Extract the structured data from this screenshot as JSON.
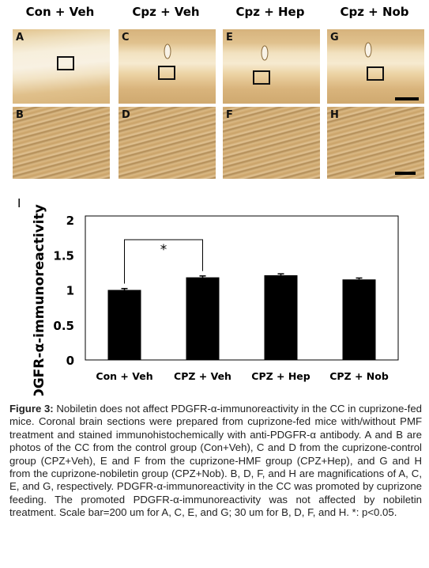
{
  "figure": {
    "column_titles": [
      "Con + Veh",
      "Cpz + Veh",
      "Cpz + Hep",
      "Cpz + Nob"
    ],
    "top_panel_labels": [
      "A",
      "C",
      "E",
      "G"
    ],
    "bottom_panel_labels": [
      "B",
      "D",
      "F",
      "H"
    ],
    "chart_panel_label": "I"
  },
  "chart_data": {
    "type": "bar",
    "ylabel": "PDGFR-α-immunoreactivity",
    "xlabel": "",
    "title": "",
    "categories": [
      "Con + Veh",
      "CPZ + Veh",
      "CPZ + Hep",
      "CPZ + Nob"
    ],
    "values": [
      1.0,
      1.18,
      1.21,
      1.15
    ],
    "errors": [
      0.02,
      0.02,
      0.02,
      0.02
    ],
    "ylim": [
      0,
      2
    ],
    "yticks": [
      "0",
      "0.5",
      "1",
      "1.5",
      "2"
    ],
    "bar_color": "#000000",
    "significance": {
      "from": 0,
      "to": 1,
      "label": "*"
    }
  },
  "caption": {
    "label": "Figure 3:",
    "text": "Nobiletin does not affect PDGFR-α-immunoreactivity in the CC in cuprizone-fed mice. Coronal brain sections were prepared from cuprizone-fed mice with/without PMF treatment and stained immunohistochemically with anti-PDGFR-α antibody. A and B are photos of the CC from the control group (Con+Veh), C and D from the cuprizone-control group (CPZ+Veh), E and F from the cuprizone-HMF group (CPZ+Hep), and G and H from the cuprizone-nobiletin group (CPZ+Nob). B, D, F, and H are magnifications of A, C, E, and G, respectively. PDGFR-α-immunoreactivity in the CC was promoted by cuprizone feeding. The promoted PDGFR-α-immunoreactivity was not affected by nobiletin treatment. Scale bar=200 um for A, C, E, and G; 30 um for B, D, F, and H. *: p<0.05."
  }
}
